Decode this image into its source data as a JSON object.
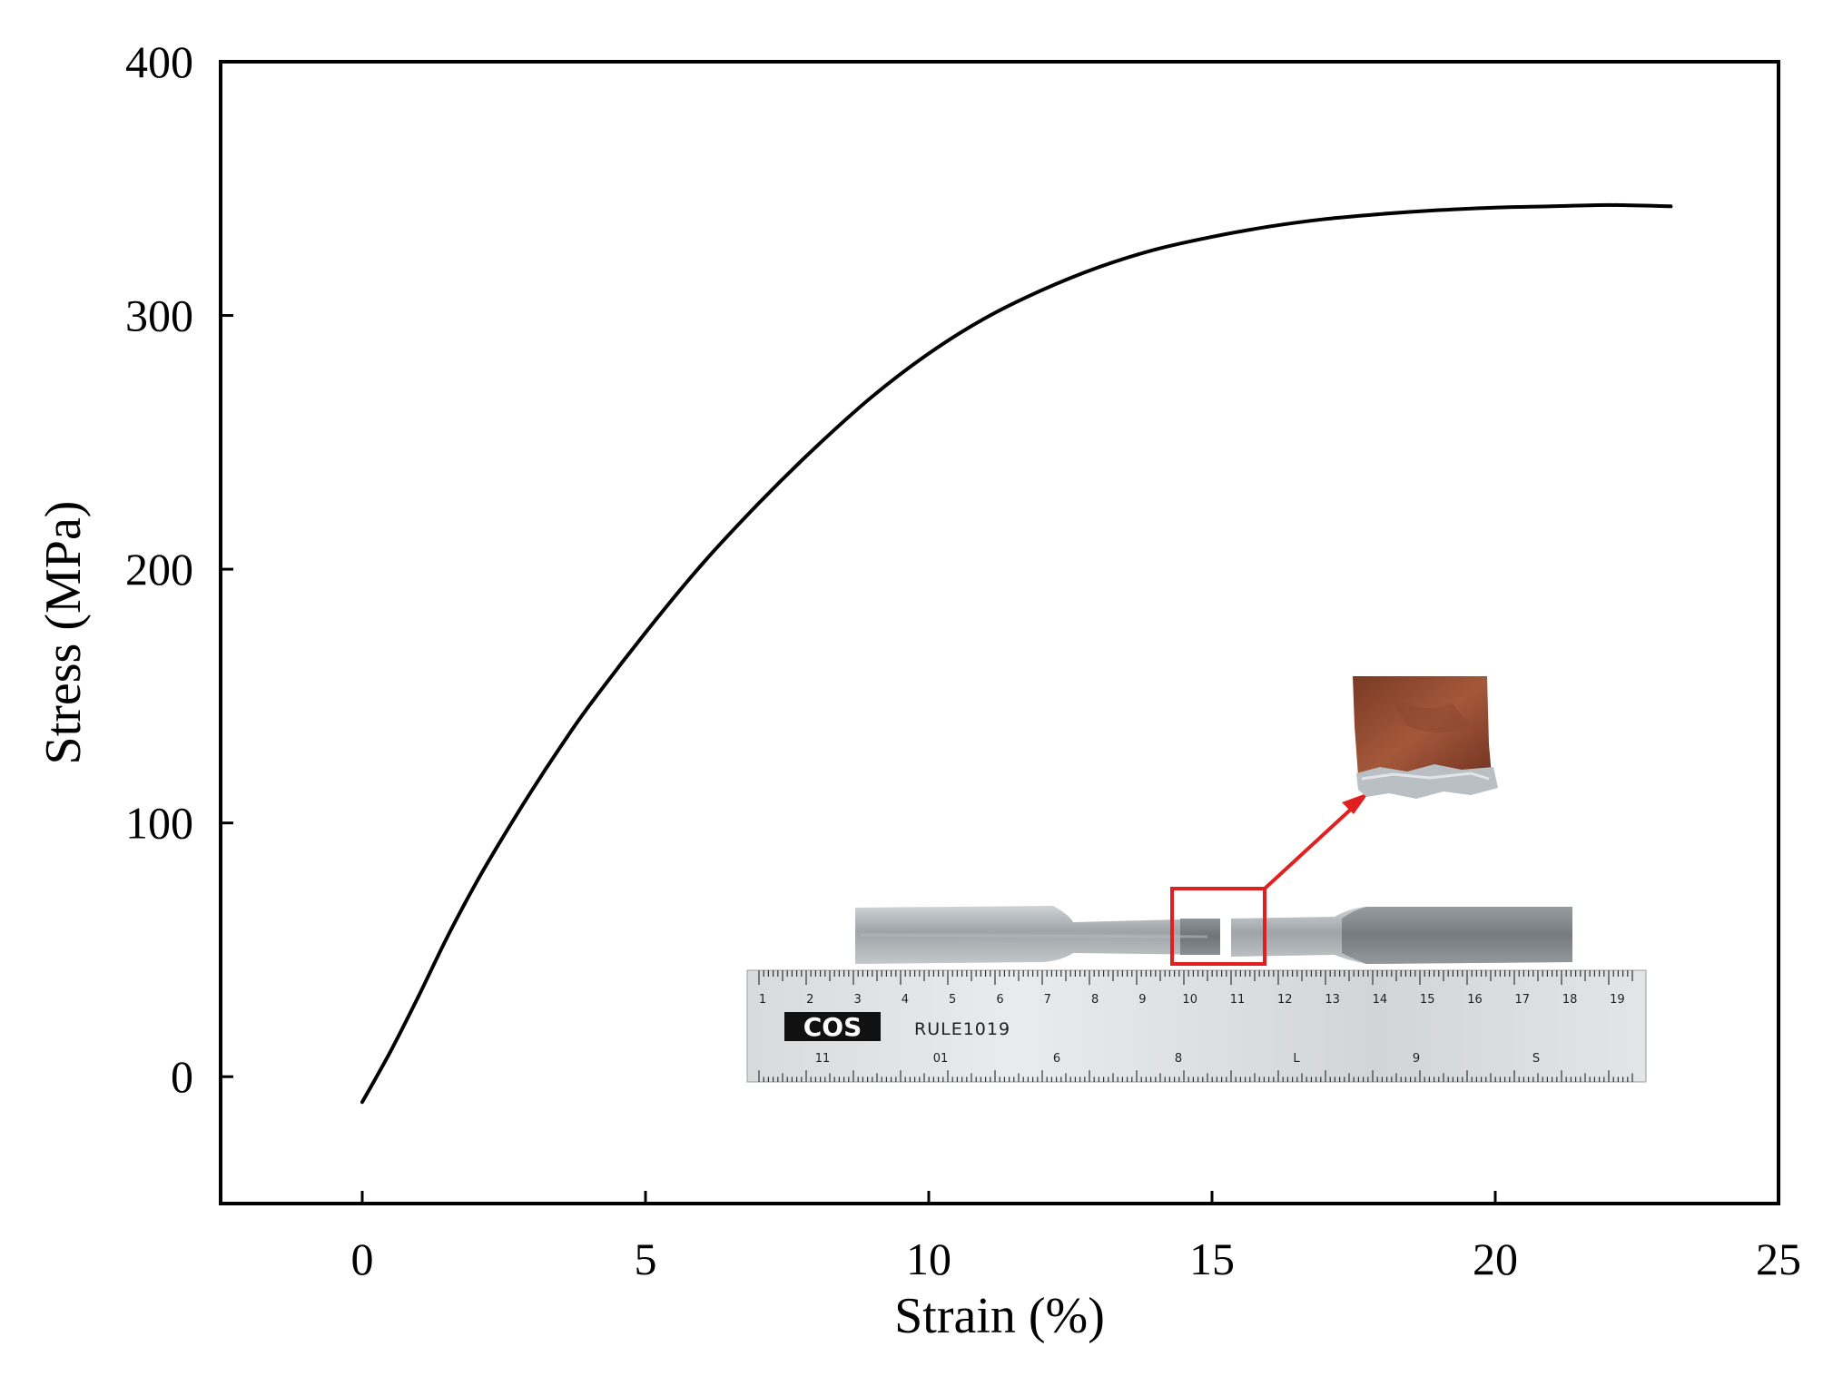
{
  "chart_data": {
    "type": "line",
    "xlabel": "Strain (%)",
    "ylabel": "Stress (MPa)",
    "xlim": [
      -2.5,
      25
    ],
    "ylim": [
      -50,
      400
    ],
    "x_ticks": [
      0,
      5,
      10,
      15,
      20,
      25
    ],
    "y_ticks": [
      0,
      100,
      200,
      300,
      400
    ],
    "grid": false,
    "series": [
      {
        "color": "#000000",
        "x": [
          0,
          0.5,
          1,
          1.5,
          2,
          2.5,
          3,
          3.5,
          4,
          5,
          6,
          7,
          8,
          9,
          10,
          11,
          12,
          13,
          14,
          15,
          16,
          17,
          18,
          19,
          20,
          21,
          22,
          23.1
        ],
        "y": [
          -10,
          10,
          32,
          55,
          76,
          95,
          113,
          130,
          146,
          175,
          202,
          226,
          248,
          268,
          285,
          299,
          310,
          319,
          326,
          331,
          335,
          338,
          340,
          341.5,
          342.5,
          343,
          343.5,
          343
        ]
      }
    ],
    "inset": {
      "ruler_label": "RULE1019",
      "ruler_brand": "COS",
      "ruler_top_numbers": [
        "1",
        "2",
        "3",
        "4",
        "5",
        "6",
        "7",
        "8",
        "9",
        "10",
        "11",
        "12",
        "13",
        "14",
        "15",
        "16",
        "17",
        "18",
        "19"
      ],
      "ruler_bottom_numbers": [
        "11",
        "01",
        "6",
        "8",
        "L",
        "9",
        "S"
      ],
      "highlight_color": "#e0201e"
    }
  }
}
